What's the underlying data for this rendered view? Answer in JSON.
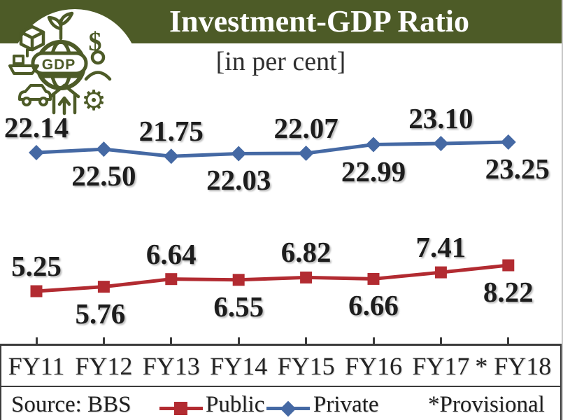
{
  "header": {
    "title": "Investment-GDP Ratio",
    "subtitle": "[in per cent]",
    "icon": "gdp-economy-icon",
    "icon_text": "GDP",
    "band_color": "#4d5b27"
  },
  "chart_data": {
    "type": "line",
    "title": "Investment-GDP Ratio",
    "subtitle": "[in per cent]",
    "unit": "per cent",
    "grid": false,
    "value_labels": true,
    "legend_position": "bottom",
    "categories": [
      "FY11",
      "FY12",
      "FY13",
      "FY14",
      "FY15",
      "FY16",
      "FY17",
      "* FY18"
    ],
    "series": [
      {
        "name": "Public",
        "marker": "square",
        "color": "#b22b31",
        "values": [
          5.25,
          5.76,
          6.64,
          6.55,
          6.82,
          6.66,
          7.41,
          8.22
        ]
      },
      {
        "name": "Private",
        "marker": "diamond",
        "color": "#4569a4",
        "values": [
          22.14,
          22.5,
          21.75,
          22.03,
          22.07,
          22.99,
          23.1,
          23.25
        ]
      }
    ]
  },
  "footer": {
    "source": "Source: BBS",
    "note": "*Provisional",
    "axis_color": "#3b3b3b"
  }
}
